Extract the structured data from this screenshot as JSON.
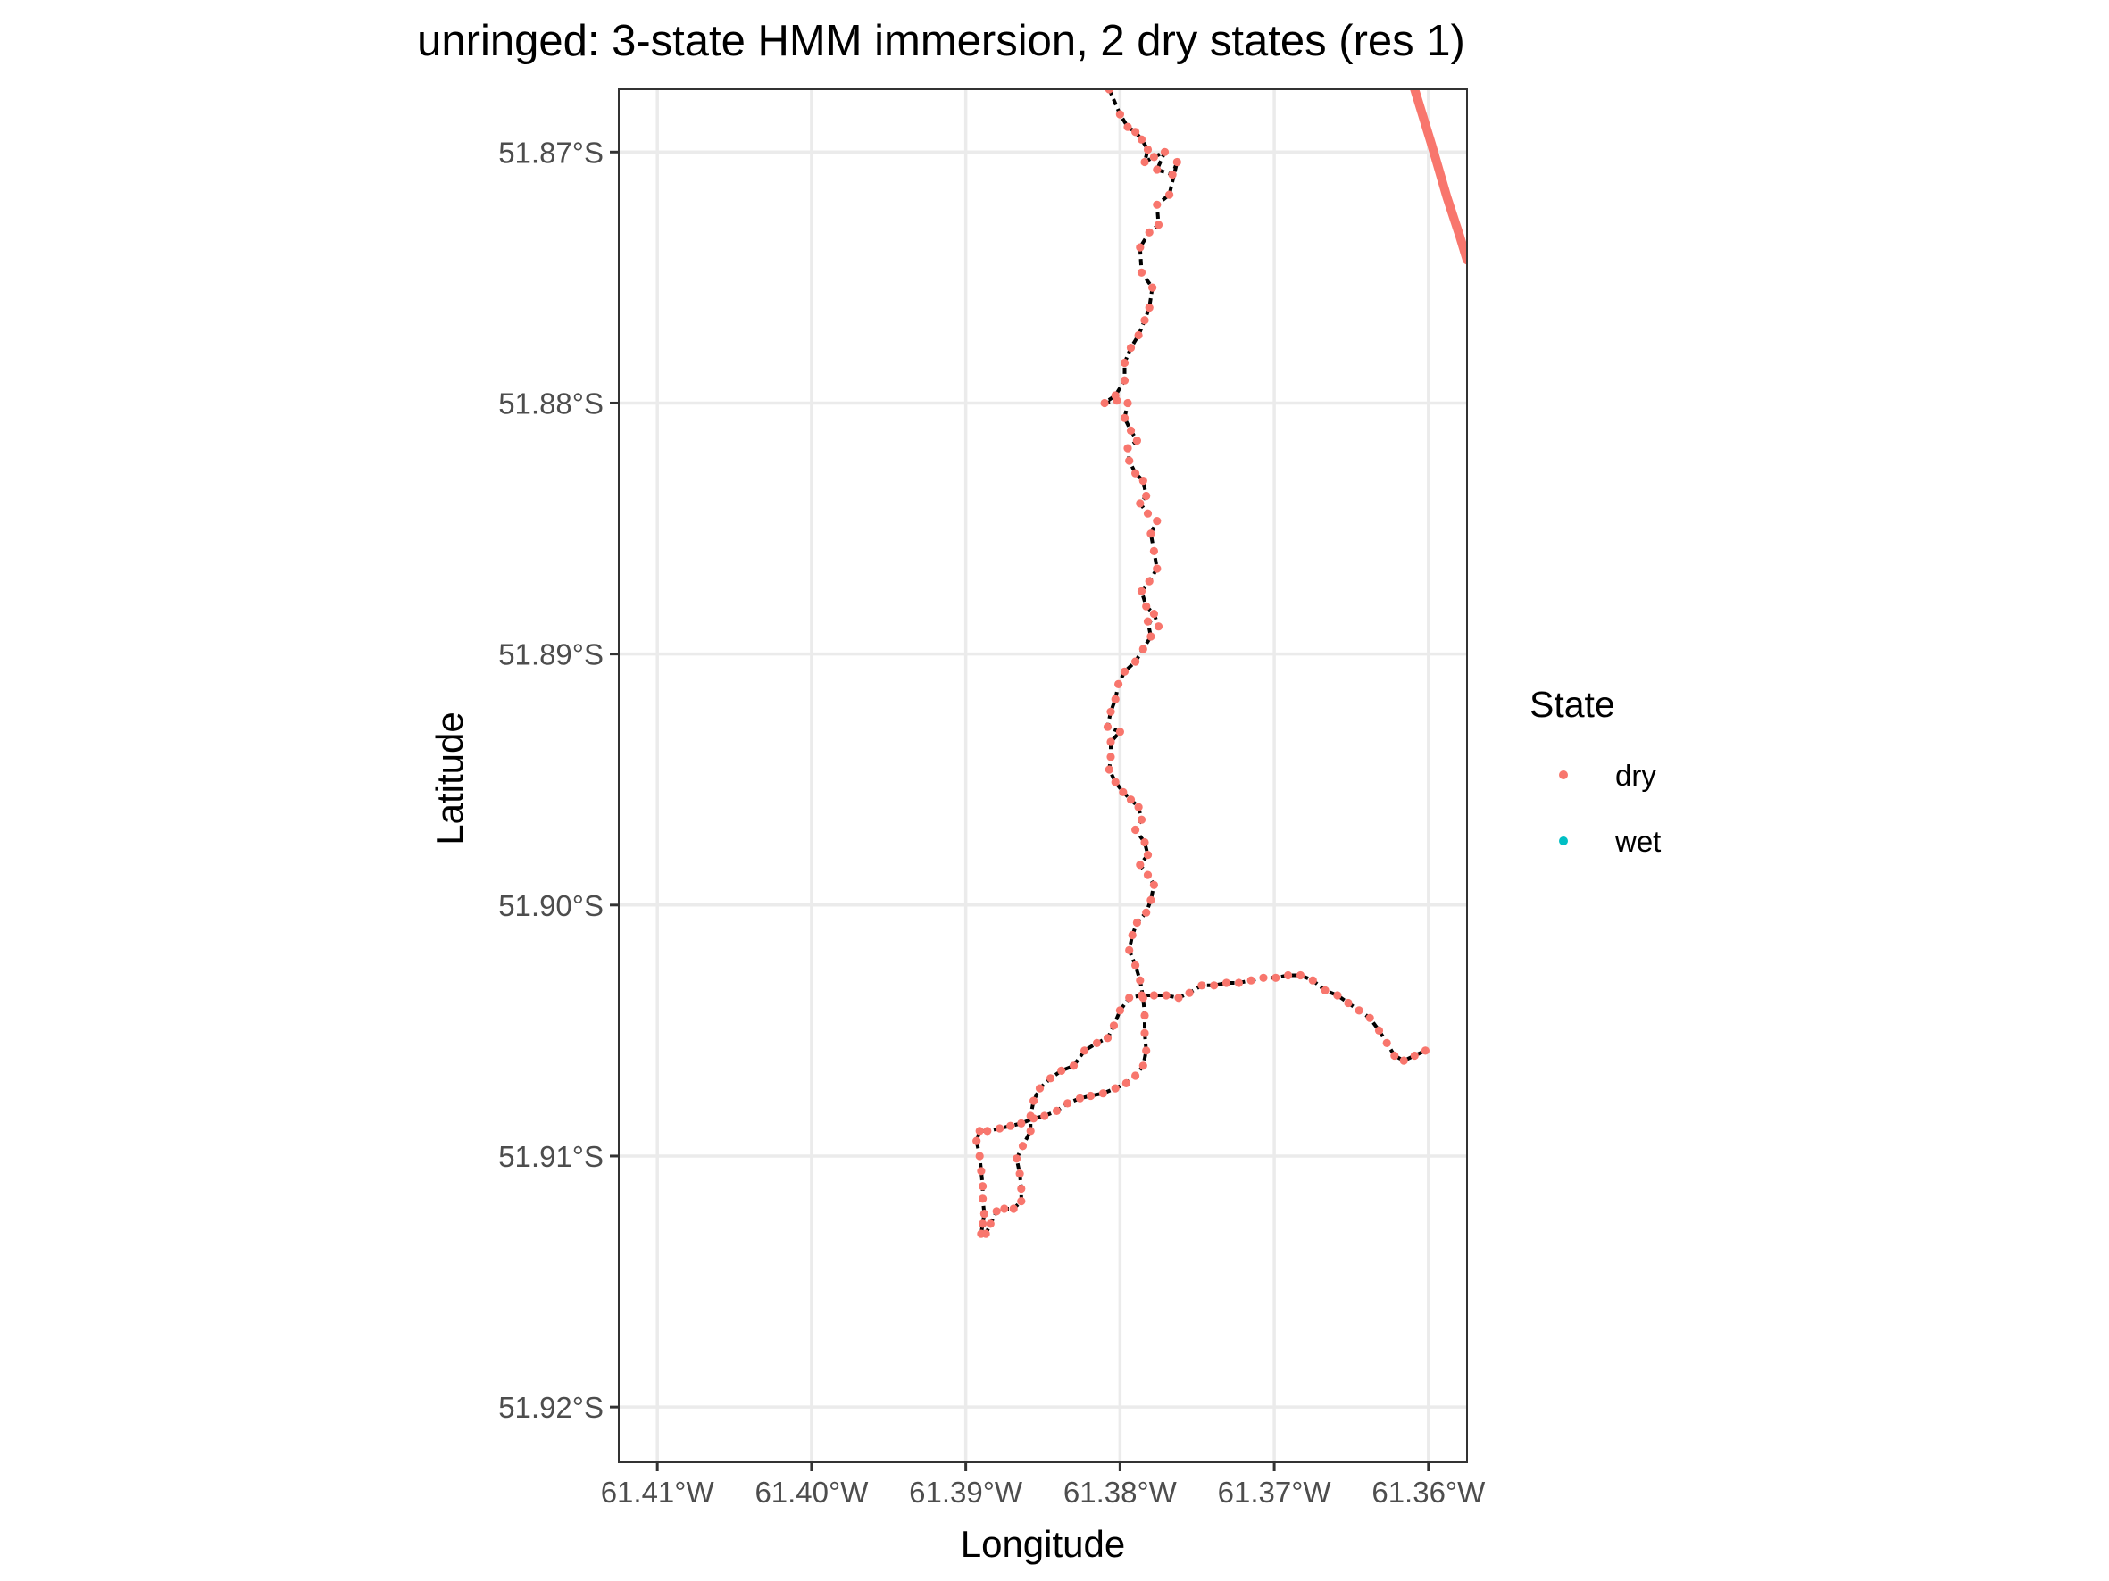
{
  "chart_data": {
    "type": "scatter",
    "title": "unringed: 3-state HMM immersion, 2 dry states (res 1)",
    "xlabel": "Longitude",
    "ylabel": "Latitude",
    "xlim": [
      -61.4125,
      -61.3575
    ],
    "ylim": [
      -51.9222,
      -51.8675
    ],
    "x_ticks": [
      -61.41,
      -61.4,
      -61.39,
      -61.38,
      -61.37,
      -61.36
    ],
    "x_tick_labels": [
      "61.41°W",
      "61.40°W",
      "61.39°W",
      "61.38°W",
      "61.37°W",
      "61.36°W"
    ],
    "y_ticks": [
      -51.87,
      -51.88,
      -51.89,
      -51.9,
      -51.91,
      -51.92
    ],
    "y_tick_labels": [
      "51.87°S",
      "51.88°S",
      "51.89°S",
      "51.90°S",
      "51.91°S",
      "51.92°S"
    ],
    "grid": true,
    "legend": {
      "title": "State",
      "position": "right",
      "entries": [
        {
          "label": "dry",
          "color": "#F8766D"
        },
        {
          "label": "wet",
          "color": "#00BFC4"
        }
      ]
    },
    "path_color": "#000000",
    "series": [
      {
        "name": "dry",
        "color": "#F8766D",
        "track": [
          [
            -61.3807,
            -51.8675
          ],
          [
            -61.38,
            -51.8685
          ],
          [
            -61.3795,
            -51.869
          ],
          [
            -61.379,
            -51.8692
          ],
          [
            -61.3786,
            -51.8695
          ],
          [
            -61.3782,
            -51.8699
          ],
          [
            -61.3784,
            -51.8704
          ],
          [
            -61.3778,
            -51.8702
          ],
          [
            -61.3771,
            -51.87
          ],
          [
            -61.3776,
            -51.8707
          ],
          [
            -61.3766,
            -51.8709
          ],
          [
            -61.3763,
            -51.8704
          ],
          [
            -61.3768,
            -51.8717
          ],
          [
            -61.3776,
            -51.8721
          ],
          [
            -61.3775,
            -51.8729
          ],
          [
            -61.3781,
            -51.8732
          ],
          [
            -61.3787,
            -51.8738
          ],
          [
            -61.3786,
            -51.8748
          ],
          [
            -61.3779,
            -51.8754
          ],
          [
            -61.3781,
            -51.8762
          ],
          [
            -61.3784,
            -51.8767
          ],
          [
            -61.3788,
            -51.8773
          ],
          [
            -61.3793,
            -51.8778
          ],
          [
            -61.3797,
            -51.8784
          ],
          [
            -61.3797,
            -51.8791
          ],
          [
            -61.3803,
            -51.8797
          ],
          [
            -61.381,
            -51.88
          ],
          [
            -61.3802,
            -51.8799
          ],
          [
            -61.3795,
            -51.88
          ],
          [
            -61.3797,
            -51.8806
          ],
          [
            -61.3793,
            -51.8811
          ],
          [
            -61.3789,
            -51.8815
          ],
          [
            -61.3795,
            -51.8818
          ],
          [
            -61.3794,
            -51.8823
          ],
          [
            -61.379,
            -51.8828
          ],
          [
            -61.3785,
            -51.8831
          ],
          [
            -61.3783,
            -51.8837
          ],
          [
            -61.3787,
            -51.884
          ],
          [
            -61.3782,
            -51.8844
          ],
          [
            -61.3776,
            -51.8847
          ],
          [
            -61.378,
            -51.8852
          ],
          [
            -61.3778,
            -51.8859
          ],
          [
            -61.3776,
            -51.8866
          ],
          [
            -61.3781,
            -51.8871
          ],
          [
            -61.3786,
            -51.8875
          ],
          [
            -61.3783,
            -51.8881
          ],
          [
            -61.3778,
            -51.8884
          ],
          [
            -61.3775,
            -51.8889
          ],
          [
            -61.3782,
            -51.8887
          ],
          [
            -61.378,
            -51.8893
          ],
          [
            -61.3785,
            -51.8898
          ],
          [
            -61.379,
            -51.8903
          ],
          [
            -61.3797,
            -51.8907
          ],
          [
            -61.3801,
            -51.8912
          ],
          [
            -61.3803,
            -51.8918
          ],
          [
            -61.3806,
            -51.8923
          ],
          [
            -61.3808,
            -51.8929
          ],
          [
            -61.38,
            -51.8931
          ],
          [
            -61.3806,
            -51.8935
          ],
          [
            -61.3806,
            -51.8941
          ],
          [
            -61.3807,
            -51.8946
          ],
          [
            -61.3803,
            -51.8951
          ],
          [
            -61.3798,
            -51.8955
          ],
          [
            -61.3793,
            -51.8958
          ],
          [
            -61.3788,
            -51.8961
          ],
          [
            -61.3786,
            -51.8966
          ],
          [
            -61.379,
            -51.897
          ],
          [
            -61.3784,
            -51.8975
          ],
          [
            -61.3782,
            -51.898
          ],
          [
            -61.3787,
            -51.8984
          ],
          [
            -61.3782,
            -51.8988
          ],
          [
            -61.3778,
            -51.8992
          ],
          [
            -61.378,
            -51.8998
          ],
          [
            -61.3783,
            -51.9003
          ],
          [
            -61.3789,
            -51.9007
          ],
          [
            -61.3792,
            -51.9012
          ],
          [
            -61.3794,
            -51.9018
          ],
          [
            -61.379,
            -51.9024
          ],
          [
            -61.3787,
            -51.903
          ],
          [
            -61.3785,
            -51.9037
          ],
          [
            -61.3784,
            -51.9044
          ],
          [
            -61.3784,
            -51.9051
          ],
          [
            -61.3783,
            -51.9058
          ],
          [
            -61.3785,
            -51.9064
          ],
          [
            -61.379,
            -51.9068
          ],
          [
            -61.3796,
            -51.9071
          ],
          [
            -61.3803,
            -51.9073
          ],
          [
            -61.3811,
            -51.9075
          ],
          [
            -61.3819,
            -51.9076
          ],
          [
            -61.3826,
            -51.9077
          ],
          [
            -61.3834,
            -51.9079
          ],
          [
            -61.3841,
            -51.9082
          ],
          [
            -61.3849,
            -51.9084
          ],
          [
            -61.3856,
            -51.9085
          ],
          [
            -61.3864,
            -51.9087
          ],
          [
            -61.3871,
            -51.9088
          ],
          [
            -61.3878,
            -51.9089
          ],
          [
            -61.3886,
            -51.909
          ],
          [
            -61.3891,
            -51.909
          ],
          [
            -61.3893,
            -51.9094
          ],
          [
            -61.3891,
            -51.91
          ],
          [
            -61.389,
            -51.9106
          ],
          [
            -61.3889,
            -51.9112
          ],
          [
            -61.3889,
            -51.9117
          ],
          [
            -61.3888,
            -51.9123
          ],
          [
            -61.3889,
            -51.9127
          ],
          [
            -61.389,
            -51.9131
          ],
          [
            -61.3887,
            -51.9131
          ],
          [
            -61.3884,
            -51.9127
          ],
          [
            -61.388,
            -51.9122
          ],
          [
            -61.3875,
            -51.9121
          ],
          [
            -61.3869,
            -51.9121
          ],
          [
            -61.3864,
            -51.9118
          ],
          [
            -61.3864,
            -51.9113
          ],
          [
            -61.3865,
            -51.9107
          ],
          [
            -61.3867,
            -51.9101
          ],
          [
            -61.3863,
            -51.9096
          ],
          [
            -61.3858,
            -51.909
          ],
          [
            -61.3858,
            -51.9084
          ],
          [
            -61.3856,
            -51.9078
          ],
          [
            -61.3852,
            -51.9073
          ],
          [
            -61.3845,
            -51.9069
          ],
          [
            -61.3838,
            -51.9066
          ],
          [
            -61.383,
            -51.9064
          ],
          [
            -61.3823,
            -51.9058
          ],
          [
            -61.3815,
            -51.9055
          ],
          [
            -61.3808,
            -51.9053
          ],
          [
            -61.3804,
            -51.9048
          ],
          [
            -61.38,
            -51.9042
          ],
          [
            -61.3794,
            -51.9037
          ],
          [
            -61.3786,
            -51.9036
          ],
          [
            -61.3778,
            -51.9036
          ],
          [
            -61.377,
            -51.9036
          ],
          [
            -61.3762,
            -51.9037
          ],
          [
            -61.3755,
            -51.9035
          ],
          [
            -61.3747,
            -51.9032
          ],
          [
            -61.3739,
            -51.9032
          ],
          [
            -61.3731,
            -51.9031
          ],
          [
            -61.3723,
            -51.9031
          ],
          [
            -61.3715,
            -51.903
          ],
          [
            -61.3707,
            -51.9029
          ],
          [
            -61.3699,
            -51.9029
          ],
          [
            -61.3691,
            -51.9028
          ],
          [
            -61.3683,
            -51.9028
          ],
          [
            -61.3675,
            -51.903
          ],
          [
            -61.3667,
            -51.9034
          ],
          [
            -61.3659,
            -51.9036
          ],
          [
            -61.3652,
            -51.9039
          ],
          [
            -61.3645,
            -51.9042
          ],
          [
            -61.3638,
            -51.9045
          ],
          [
            -61.3632,
            -51.905
          ],
          [
            -61.3627,
            -51.9055
          ],
          [
            -61.3622,
            -51.906
          ],
          [
            -61.3616,
            -51.9062
          ],
          [
            -61.3609,
            -51.906
          ],
          [
            -61.3602,
            -51.9058
          ]
        ],
        "line": [
          [
            -61.3609,
            -51.8675
          ],
          [
            -61.3598,
            -51.8697
          ],
          [
            -61.3588,
            -51.8718
          ],
          [
            -61.358,
            -51.8733
          ],
          [
            -61.3575,
            -51.8743
          ]
        ]
      },
      {
        "name": "wet",
        "color": "#00BFC4",
        "track": []
      }
    ]
  }
}
